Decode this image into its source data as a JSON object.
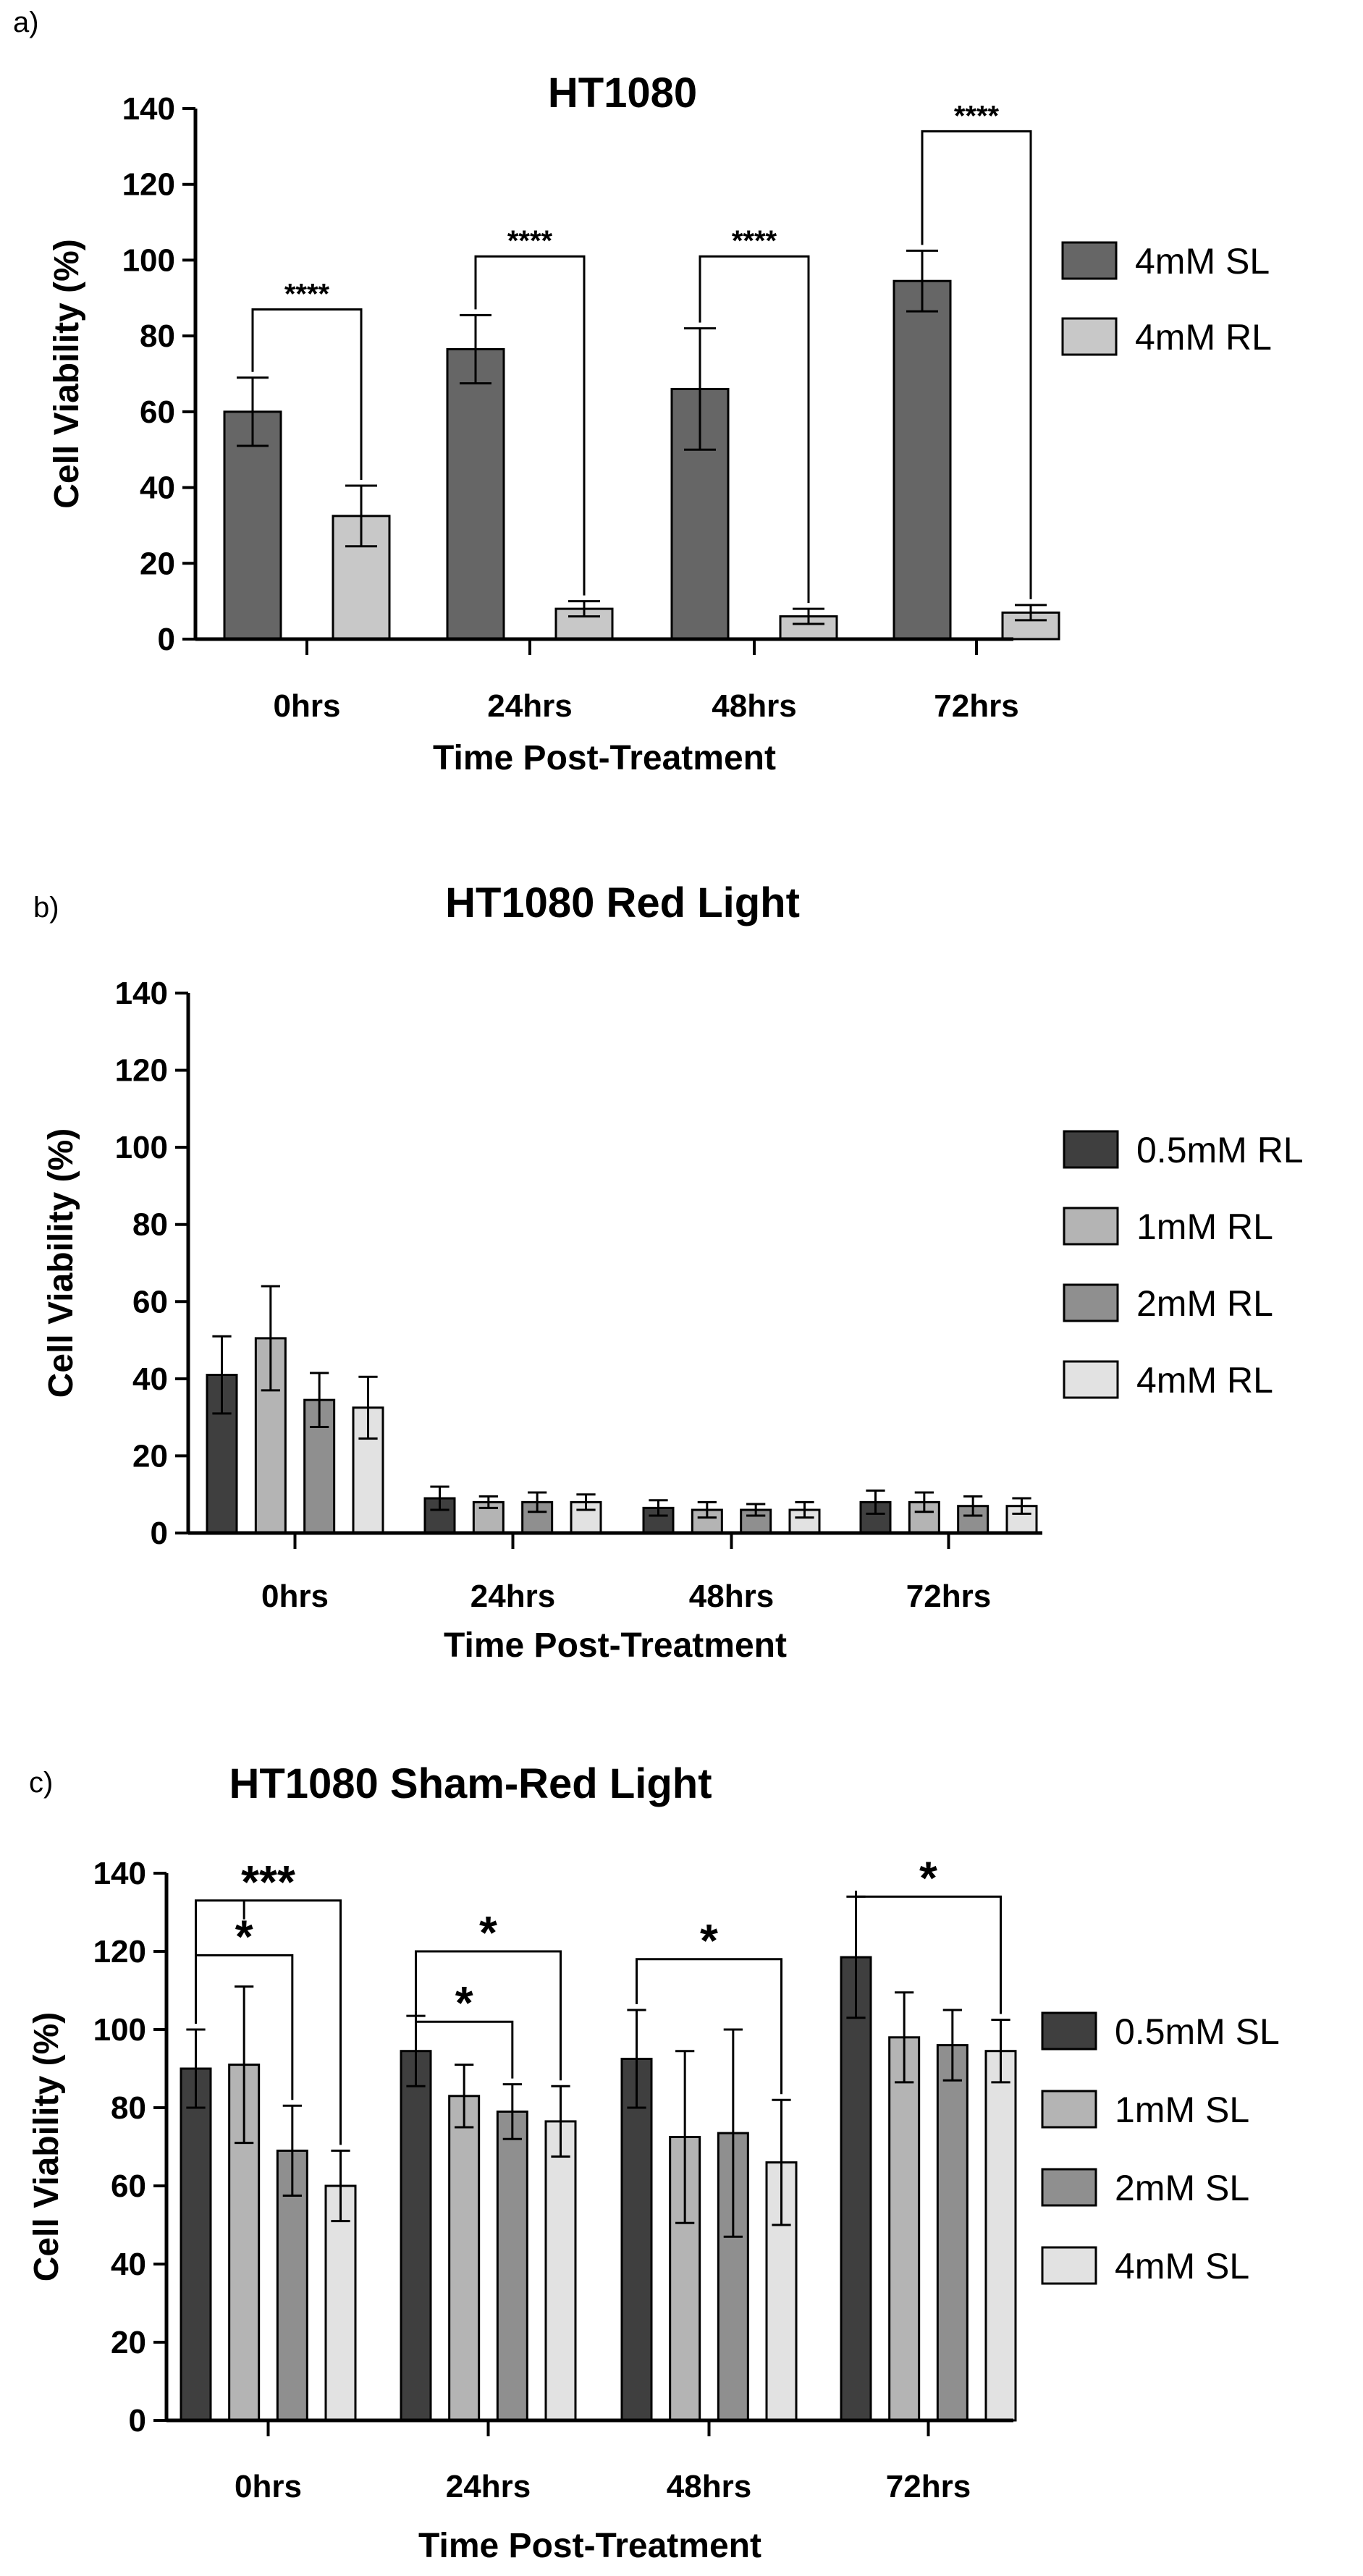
{
  "chart_data": [
    {
      "panel": "a)",
      "type": "bar",
      "title": "HT1080",
      "xlabel": "Time Post-Treatment",
      "ylabel": "Cell Viability (%)",
      "ylim": [
        0,
        140
      ],
      "yticks": [
        "0",
        "20",
        "40",
        "60",
        "80",
        "100",
        "120",
        "140"
      ],
      "categories": [
        "0hrs",
        "24hrs",
        "48hrs",
        "72hrs"
      ],
      "legend_position": "right",
      "series": [
        {
          "name": "4mM SL",
          "color": "#666666",
          "values": [
            60,
            76.5,
            66,
            94.5
          ],
          "errors": [
            9,
            9,
            16,
            8
          ]
        },
        {
          "name": "4mM RL",
          "color": "#c8c8c8",
          "values": [
            32.5,
            8,
            6,
            7
          ],
          "errors": [
            8,
            2,
            2,
            2
          ]
        }
      ],
      "annotations": [
        {
          "text": "****",
          "category": 0,
          "from": 0,
          "to": 1,
          "level": 87
        },
        {
          "text": "****",
          "category": 1,
          "from": 0,
          "to": 1,
          "level": 101
        },
        {
          "text": "****",
          "category": 2,
          "from": 0,
          "to": 1,
          "level": 101
        },
        {
          "text": "****",
          "category": 3,
          "from": 0,
          "to": 1,
          "level": 134
        }
      ]
    },
    {
      "panel": "b)",
      "type": "bar",
      "title": "HT1080 Red Light",
      "xlabel": "Time Post-Treatment",
      "ylabel": "Cell Viability (%)",
      "ylim": [
        0,
        140
      ],
      "yticks": [
        "0",
        "20",
        "40",
        "60",
        "80",
        "100",
        "120",
        "140"
      ],
      "categories": [
        "0hrs",
        "24hrs",
        "48hrs",
        "72hrs"
      ],
      "legend_position": "right",
      "series": [
        {
          "name": "0.5mM RL",
          "color": "#3f3f3f",
          "values": [
            41,
            9,
            6.5,
            8
          ],
          "errors": [
            10,
            3,
            2,
            3
          ]
        },
        {
          "name": "1mM RL",
          "color": "#b4b4b4",
          "values": [
            50.5,
            8,
            6,
            8
          ],
          "errors": [
            13.5,
            1.5,
            2,
            2.5
          ]
        },
        {
          "name": "2mM RL",
          "color": "#8f8f8f",
          "values": [
            34.5,
            8,
            6,
            7
          ],
          "errors": [
            7,
            2.5,
            1.5,
            2.5
          ]
        },
        {
          "name": "4mM RL",
          "color": "#e2e2e2",
          "values": [
            32.5,
            8,
            6,
            7
          ],
          "errors": [
            8,
            2,
            2,
            2
          ]
        }
      ],
      "annotations": []
    },
    {
      "panel": "c)",
      "type": "bar",
      "title": "HT1080 Sham-Red Light",
      "xlabel": "Time Post-Treatment",
      "ylabel": "Cell Viability (%)",
      "ylim": [
        0,
        140
      ],
      "yticks": [
        "0",
        "20",
        "40",
        "60",
        "80",
        "100",
        "120",
        "140"
      ],
      "categories": [
        "0hrs",
        "24hrs",
        "48hrs",
        "72hrs"
      ],
      "legend_position": "right",
      "series": [
        {
          "name": "0.5mM SL",
          "color": "#3f3f3f",
          "values": [
            90,
            94.5,
            92.5,
            118.5
          ],
          "errors": [
            10,
            9,
            12.5,
            15.5
          ]
        },
        {
          "name": "1mM SL",
          "color": "#b4b4b4",
          "values": [
            91,
            83,
            72.5,
            98
          ],
          "errors": [
            20,
            8,
            22,
            11.5
          ]
        },
        {
          "name": "2mM SL",
          "color": "#8f8f8f",
          "values": [
            69,
            79,
            73.5,
            96
          ],
          "errors": [
            11.5,
            7,
            26.5,
            9
          ]
        },
        {
          "name": "4mM SL",
          "color": "#e2e2e2",
          "values": [
            60,
            76.5,
            66,
            94.5
          ],
          "errors": [
            9,
            9,
            16,
            8
          ]
        }
      ],
      "annotations": [
        {
          "text": "***",
          "category": 0,
          "from": 0,
          "to": 3,
          "level": 133,
          "drop": 1
        },
        {
          "text": "*",
          "category": 0,
          "from": 0,
          "to": 2,
          "level": 119
        },
        {
          "text": "*",
          "category": 1,
          "from": 0,
          "to": 3,
          "level": 120
        },
        {
          "text": "*",
          "category": 1,
          "from": 0,
          "to": 2,
          "level": 102
        },
        {
          "text": "*",
          "category": 2,
          "from": 0,
          "to": 3,
          "level": 118
        },
        {
          "text": "*",
          "category": 3,
          "from": 0,
          "to": 3,
          "level": 134
        }
      ]
    }
  ]
}
